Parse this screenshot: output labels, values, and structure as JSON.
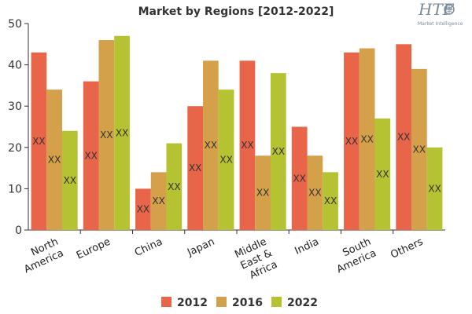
{
  "logo": {
    "mark": "HTF",
    "tagline": "Market Intelligence"
  },
  "chart_data": {
    "type": "bar",
    "title": "Market by Regions [2012-2022]",
    "xlabel": "",
    "ylabel": "",
    "ylim": [
      0,
      50
    ],
    "yticks": [
      0,
      10,
      20,
      30,
      40,
      50
    ],
    "grid": false,
    "legend_position": "bottom",
    "categories": [
      "North America",
      "Europe",
      "China",
      "Japan",
      "Middle East & Africa",
      "India",
      "South America",
      "Others"
    ],
    "category_lines": [
      [
        "North",
        "America"
      ],
      [
        "Europe"
      ],
      [
        "China"
      ],
      [
        "Japan"
      ],
      [
        "Middle",
        "East &",
        "Africa"
      ],
      [
        "India"
      ],
      [
        "South",
        "America"
      ],
      [
        "Others"
      ]
    ],
    "series": [
      {
        "name": "2012",
        "color": "#e8654a",
        "values": [
          43,
          36,
          10,
          30,
          41,
          25,
          43,
          45
        ]
      },
      {
        "name": "2016",
        "color": "#d4a04a",
        "values": [
          34,
          46,
          14,
          41,
          18,
          18,
          44,
          39
        ]
      },
      {
        "name": "2022",
        "color": "#b5c232",
        "values": [
          24,
          47,
          21,
          34,
          38,
          14,
          27,
          20
        ]
      }
    ],
    "data_label": "XX"
  }
}
